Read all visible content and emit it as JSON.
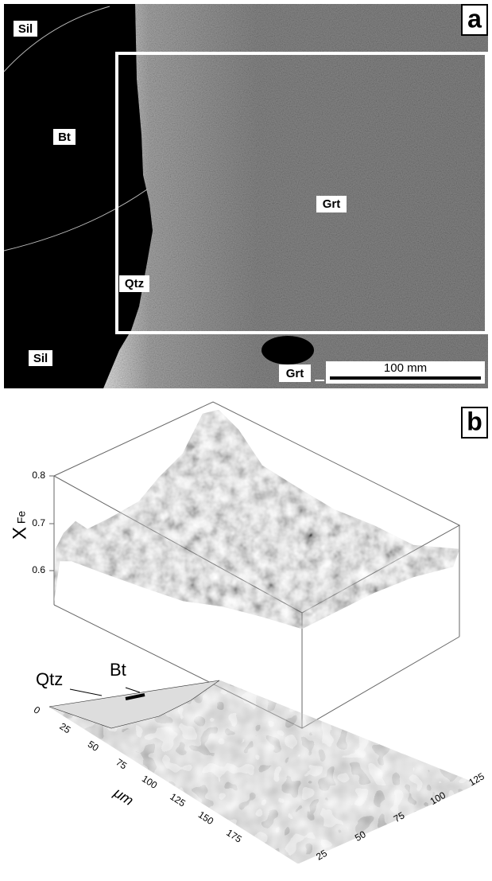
{
  "panel_a": {
    "label": "a",
    "minerals": [
      "Sil",
      "Bt",
      "Grt",
      "Qtz",
      "Sil",
      "Grt"
    ],
    "scale_bar": "100 mm"
  },
  "panel_b": {
    "label": "b",
    "axis_symbol": "X",
    "axis_subscript": "Fe",
    "z_ticks": [
      "0.6",
      "0.7",
      "0.8"
    ],
    "x_ticks": [
      "0",
      "25",
      "50",
      "75",
      "100",
      "125",
      "150",
      "175"
    ],
    "x_unit": "μm",
    "y_ticks": [
      "25",
      "50",
      "75",
      "100",
      "125"
    ],
    "annotations": [
      "Qtz",
      "Bt"
    ]
  }
}
